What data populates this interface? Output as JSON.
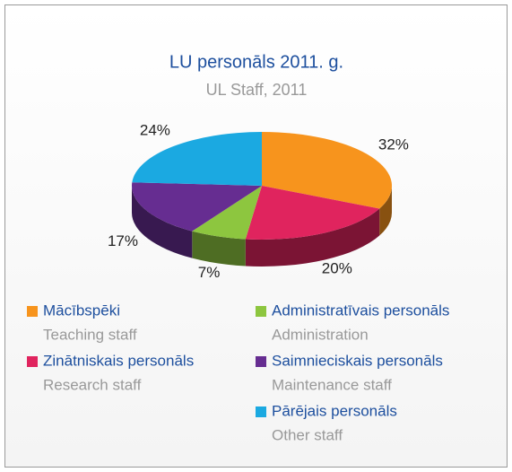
{
  "chart_data": {
    "type": "pie3d",
    "title": "LU personāls 2011. g.",
    "subtitle": "UL Staff, 2011",
    "categories": [
      "Mācībspēki",
      "Zinātniskais personāls",
      "Administratīvais personāls",
      "Saimnieciskais personāls",
      "Pārējais personāls"
    ],
    "categories_en": [
      "Teaching staff",
      "Research staff",
      "Administration",
      "Maintenance staff",
      "Other staff"
    ],
    "values": [
      32,
      20,
      7,
      17,
      24
    ],
    "value_labels": [
      "32%",
      "20%",
      "7%",
      "17%",
      "24%"
    ],
    "colors": [
      "#f7941d",
      "#e0245e",
      "#8dc63f",
      "#662d91",
      "#1ba9e1"
    ]
  }
}
